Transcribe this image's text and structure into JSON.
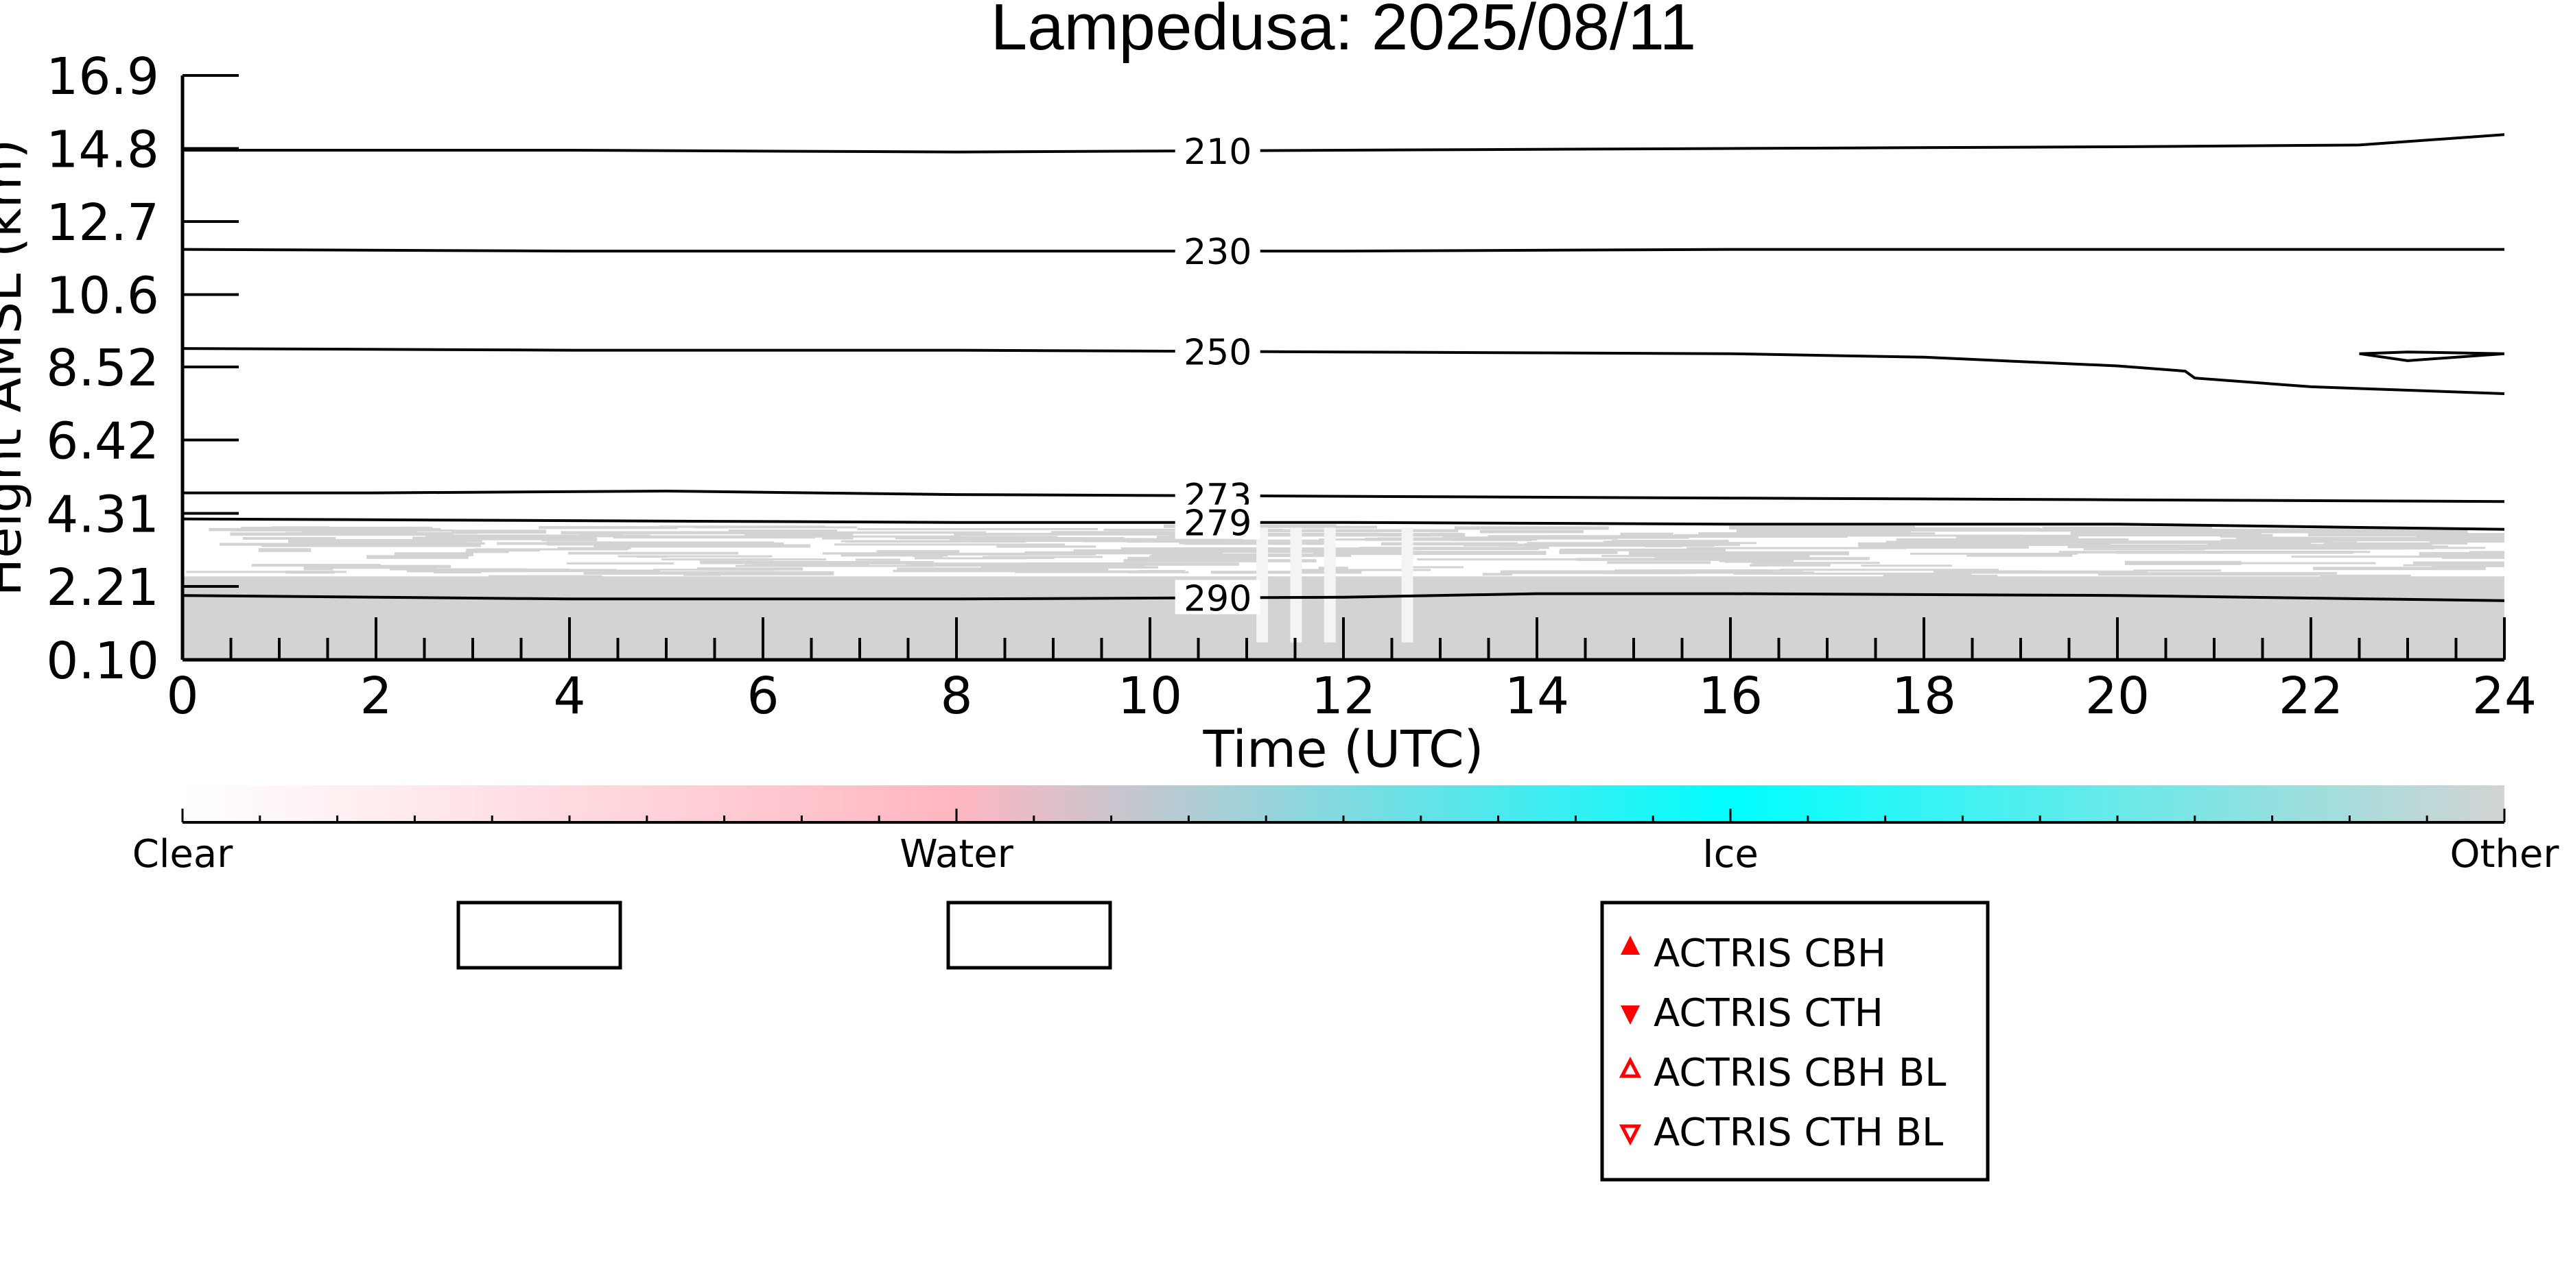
{
  "chart_data": {
    "type": "heatmap",
    "title": "Lampedusa: 2025/08/11",
    "xlabel": "Time (UTC)",
    "ylabel": "Height AMSL (km)",
    "xlim": [
      0,
      24
    ],
    "ylim": [
      0.1,
      16.9
    ],
    "x_ticks": [
      0,
      2,
      4,
      6,
      8,
      10,
      12,
      14,
      16,
      18,
      20,
      22,
      24
    ],
    "x_tick_labels": [
      "0",
      "2",
      "4",
      "6",
      "8",
      "10",
      "12",
      "14",
      "16",
      "18",
      "20",
      "22",
      "24"
    ],
    "y_ticks": [
      0.1,
      2.21,
      4.31,
      6.42,
      8.52,
      10.6,
      12.7,
      14.8,
      16.9
    ],
    "y_tick_labels": [
      "0.10",
      "2.21",
      "4.31",
      "6.42",
      "8.52",
      "10.6",
      "12.7",
      "14.8",
      "16.9"
    ],
    "grid": false,
    "colorbar": {
      "labels": [
        "Clear",
        "Water",
        "Ice",
        "Other"
      ],
      "colors": [
        "#ffffff",
        "#ffb6c1",
        "#00ffff",
        "#d3d3d3"
      ]
    },
    "fields": [
      {
        "name": "Other",
        "color": "#d3d3d3",
        "x_range": [
          0,
          24
        ],
        "height_range": [
          0.1,
          3.9
        ],
        "note": "speckled layer between ~2.5 and 3.9 km"
      }
    ],
    "contours": [
      {
        "level": "210",
        "x": [
          0,
          4,
          8,
          12,
          16,
          20,
          22.5,
          24
        ],
        "y": [
          14.75,
          14.75,
          14.7,
          14.75,
          14.8,
          14.85,
          14.9,
          15.2
        ]
      },
      {
        "level": "230",
        "x": [
          0,
          4,
          8,
          12,
          16,
          20,
          24
        ],
        "y": [
          11.9,
          11.85,
          11.85,
          11.85,
          11.9,
          11.9,
          11.9
        ]
      },
      {
        "level": "250",
        "x": [
          0,
          4,
          8,
          12,
          16,
          18,
          20,
          20.7,
          20.8,
          22,
          24
        ],
        "y": [
          9.05,
          9.0,
          9.0,
          8.95,
          8.9,
          8.8,
          8.55,
          8.4,
          8.2,
          7.95,
          7.75
        ]
      },
      {
        "level": "250",
        "x": [
          22.5,
          23,
          24,
          23,
          22.5
        ],
        "y": [
          8.9,
          8.95,
          8.9,
          8.7,
          8.9
        ]
      },
      {
        "level": "273",
        "x": [
          0,
          2,
          5,
          8,
          12,
          16,
          20,
          24
        ],
        "y": [
          4.9,
          4.9,
          4.95,
          4.85,
          4.8,
          4.75,
          4.7,
          4.65
        ]
      },
      {
        "level": "279",
        "x": [
          0,
          4,
          8,
          12,
          16,
          20,
          24
        ],
        "y": [
          4.15,
          4.1,
          4.05,
          4.05,
          4.0,
          4.0,
          3.85
        ]
      },
      {
        "level": "290",
        "x": [
          0,
          4,
          8,
          12,
          14,
          16,
          20,
          24
        ],
        "y": [
          1.95,
          1.85,
          1.85,
          1.9,
          2.0,
          2.0,
          1.95,
          1.8
        ]
      }
    ],
    "legend": {
      "placement": "bottom-right",
      "entries": [
        "ACTRIS CBH",
        "ACTRIS CTH",
        "ACTRIS CBH BL",
        "ACTRIS CTH BL"
      ],
      "marker_color": "#ff0000"
    }
  }
}
